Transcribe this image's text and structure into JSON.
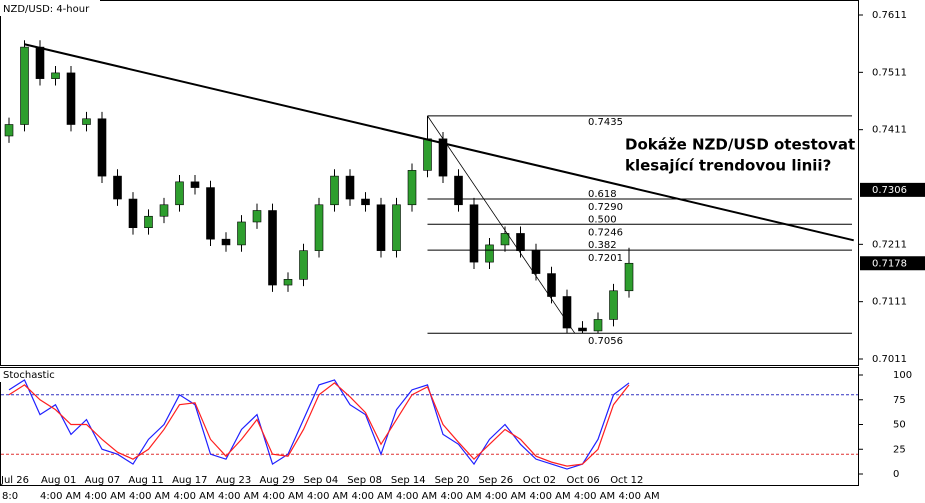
{
  "chart_data": {
    "type": "candlestick",
    "title": "NZD/USD: 4-hour",
    "annotation": [
      "Dokáže NZD/USD otestovat",
      "klesající trendovou linii?"
    ],
    "open": [
      0.74,
      0.742,
      0.7555,
      0.75,
      0.751,
      0.742,
      0.743,
      0.733,
      0.729,
      0.724,
      0.726,
      0.728,
      0.732,
      0.731,
      0.722,
      0.721,
      0.725,
      0.727,
      0.714,
      0.715,
      0.72,
      0.728,
      0.733,
      0.729,
      0.728,
      0.72,
      0.728,
      0.734,
      0.7395,
      0.733,
      0.728,
      0.718,
      0.721,
      0.723,
      0.72,
      0.716,
      0.712,
      0.7065,
      0.706,
      0.708,
      0.713
    ],
    "high": [
      0.7432,
      0.7567,
      0.7567,
      0.7522,
      0.7522,
      0.7442,
      0.7442,
      0.7342,
      0.7302,
      0.7272,
      0.7292,
      0.7332,
      0.7332,
      0.7322,
      0.7232,
      0.7262,
      0.7282,
      0.7282,
      0.7162,
      0.7212,
      0.7292,
      0.7342,
      0.7342,
      0.7302,
      0.7292,
      0.7292,
      0.7352,
      0.7435,
      0.7407,
      0.7342,
      0.7292,
      0.7222,
      0.7242,
      0.7242,
      0.7212,
      0.7172,
      0.7132,
      0.7077,
      0.7092,
      0.7142,
      0.7205
    ],
    "low": [
      0.7388,
      0.7408,
      0.7488,
      0.7488,
      0.7408,
      0.7408,
      0.7318,
      0.7278,
      0.7228,
      0.7228,
      0.7248,
      0.7268,
      0.7298,
      0.7208,
      0.7198,
      0.7198,
      0.7238,
      0.7128,
      0.7128,
      0.7138,
      0.7188,
      0.7268,
      0.7278,
      0.7268,
      0.7188,
      0.7188,
      0.7268,
      0.7328,
      0.7318,
      0.7268,
      0.7168,
      0.7168,
      0.7198,
      0.7188,
      0.7148,
      0.7108,
      0.7056,
      0.7056,
      0.7056,
      0.7068,
      0.7118
    ],
    "close": [
      0.742,
      0.7555,
      0.75,
      0.751,
      0.742,
      0.743,
      0.733,
      0.729,
      0.724,
      0.726,
      0.728,
      0.732,
      0.731,
      0.722,
      0.721,
      0.725,
      0.727,
      0.714,
      0.715,
      0.72,
      0.728,
      0.733,
      0.729,
      0.728,
      0.72,
      0.728,
      0.734,
      0.7395,
      0.733,
      0.728,
      0.718,
      0.721,
      0.723,
      0.72,
      0.716,
      0.712,
      0.7065,
      0.706,
      0.708,
      0.713,
      0.7178
    ],
    "bull_color": "#2e9e2e",
    "bear_color": "#000000",
    "ylim": [
      0.7011,
      0.7611
    ],
    "yticks": [
      0.7611,
      0.7511,
      0.7411,
      0.7211,
      0.7111,
      0.7011
    ],
    "price_markers": [
      0.7306,
      0.7178
    ],
    "trendline": {
      "x": [
        1,
        54.5
      ],
      "y": [
        0.756,
        0.7218
      ]
    },
    "fib_start": 27,
    "fib_levels": [
      {
        "value": 0.7435,
        "label": "0.7435"
      },
      {
        "ratio": 0.618,
        "value": 0.729,
        "label": "0.7290"
      },
      {
        "ratio": {
          "value": 0.5,
          "label": "0.500"
        },
        "value": 0.7246,
        "label": "0.7246"
      },
      {
        "ratio": 0.382,
        "value": 0.7201,
        "label": "0.7201"
      },
      {
        "value": 0.7056,
        "label": "0.7056"
      }
    ],
    "x_labels": [
      "Jul 26",
      "Aug 01",
      "Aug 07",
      "Aug 11",
      "Aug 17",
      "Aug 23",
      "Aug 29",
      "Sep 04",
      "Sep 08",
      "Sep 14",
      "Sep 20",
      "Sep 26",
      "Oct 02",
      "Oct 06",
      "Oct 12"
    ],
    "time_labels": [
      "8:0",
      "4:00 AM",
      "4:00 AM",
      "4:00 AM",
      "4:00 AM",
      "4:00 AM",
      "4:00 AM",
      "4:00 AM",
      "4:00 AM",
      "4:00 AM",
      "4:00 AM",
      "4:00 AM",
      "4:00 AM",
      "4:00 AM",
      "4:00 AM"
    ],
    "stochastic": {
      "title": "Stochastic",
      "ylim": [
        0,
        100
      ],
      "yticks": [
        100,
        75,
        50,
        25,
        0
      ],
      "levels": [
        80,
        20
      ],
      "series": [
        {
          "color": "#2020ff",
          "values": [
            85,
            95,
            60,
            70,
            40,
            55,
            25,
            20,
            10,
            35,
            50,
            80,
            70,
            20,
            15,
            45,
            60,
            10,
            20,
            55,
            90,
            95,
            70,
            60,
            20,
            65,
            85,
            90,
            40,
            30,
            10,
            35,
            50,
            30,
            15,
            10,
            5,
            10,
            35,
            80,
            92
          ]
        },
        {
          "color": "#ff2020",
          "values": [
            80,
            90,
            75,
            65,
            50,
            50,
            35,
            22,
            15,
            25,
            45,
            70,
            72,
            35,
            18,
            35,
            55,
            20,
            18,
            45,
            80,
            92,
            78,
            62,
            30,
            55,
            80,
            88,
            50,
            32,
            15,
            30,
            45,
            35,
            18,
            12,
            8,
            10,
            25,
            70,
            90
          ]
        }
      ]
    }
  }
}
